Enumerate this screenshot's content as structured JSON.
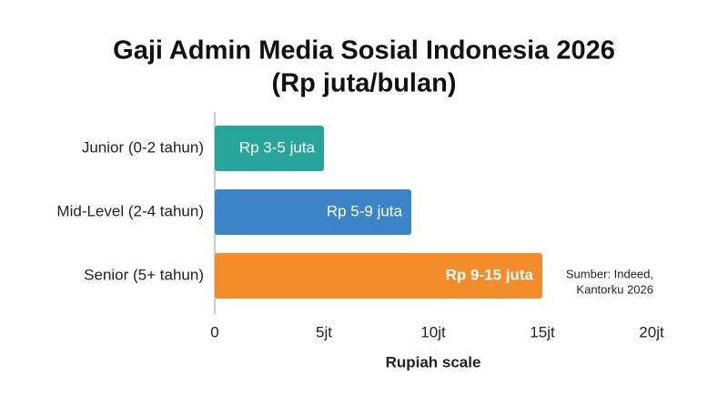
{
  "chart_data": {
    "type": "barh",
    "title": [
      "Gaji Admin Media Sosial Indonesia 2026",
      "(Rp juta/bulan)"
    ],
    "categories": [
      "Junior (0-2 tahun)",
      "Mid-Level (2-4 tahun)",
      "Senior (5+ tahun)"
    ],
    "values": [
      5,
      9,
      15
    ],
    "value_labels": [
      "Rp 3-5 juta",
      "Rp 5-9 juta",
      "Rp 9-15 juta"
    ],
    "colors": [
      "#26a69a",
      "#3a85c8",
      "#f28c28"
    ],
    "xlim": [
      0,
      20
    ],
    "xticks": [
      0,
      {
        "value": 5,
        "label": "5jt"
      },
      {
        "value": 10,
        "label": "10jt"
      },
      {
        "value": 15,
        "label": "15jt"
      },
      {
        "value": 20,
        "label": "20jt"
      }
    ],
    "xlabel": "Rupiah scale",
    "annotation": [
      "Sumber: Indeed,",
      "Kantorku 2026"
    ]
  }
}
